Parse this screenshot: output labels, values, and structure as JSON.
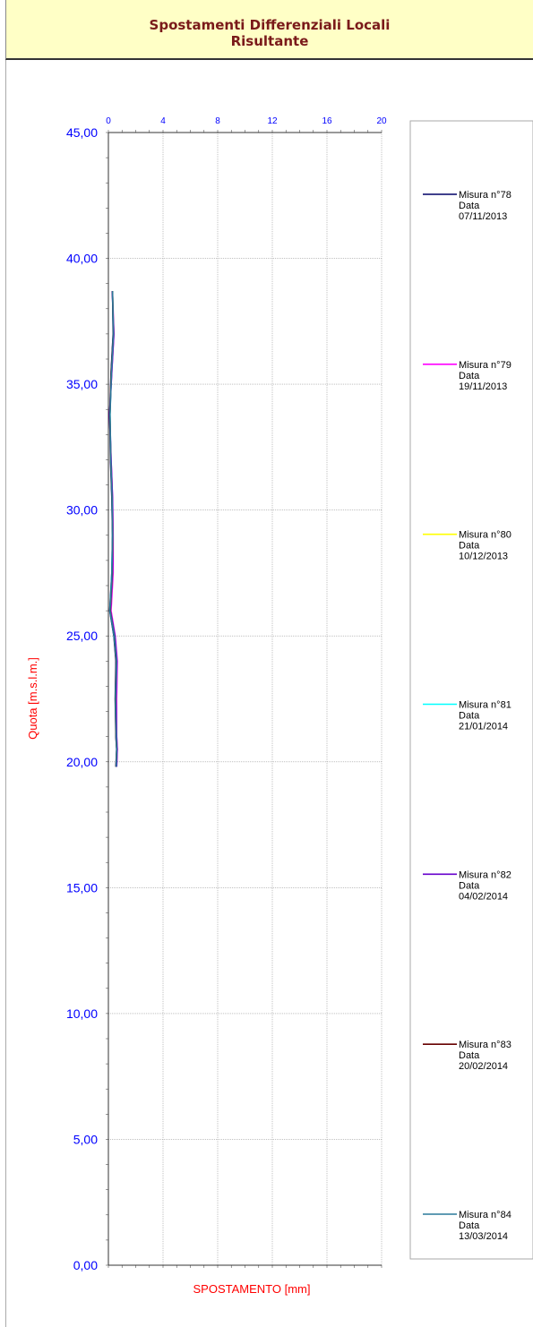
{
  "header": {
    "title_line1": "Spostamenti Differenziali Locali",
    "title_line2": "Risultante"
  },
  "chart_data": {
    "type": "line",
    "title": "Spostamenti Differenziali Locali Risultante",
    "xlabel": "SPOSTAMENTO [mm]",
    "ylabel": "Quota [m.s.l.m.]",
    "xlim": [
      0,
      20
    ],
    "ylim": [
      0,
      45
    ],
    "x_ticks": [
      "0",
      "4",
      "8",
      "12",
      "16",
      "20"
    ],
    "y_ticks": [
      "0,00",
      "5,00",
      "10,00",
      "15,00",
      "20,00",
      "25,00",
      "30,00",
      "35,00",
      "40,00",
      "45,00"
    ],
    "x_axis_position": "top",
    "grid": true,
    "legend_position": "right",
    "series": [
      {
        "name": "Misura n°78",
        "date": "07/11/2013",
        "color": "#000066",
        "points": [
          [
            0.3,
            38.7
          ],
          [
            0.35,
            37.0
          ],
          [
            0.2,
            35.5
          ],
          [
            0.1,
            33.8
          ],
          [
            0.15,
            32.0
          ],
          [
            0.25,
            30.5
          ],
          [
            0.3,
            29.0
          ],
          [
            0.25,
            27.5
          ],
          [
            0.1,
            26.0
          ],
          [
            0.4,
            25.0
          ],
          [
            0.55,
            24.0
          ],
          [
            0.5,
            22.5
          ],
          [
            0.55,
            21.0
          ],
          [
            0.6,
            20.5
          ],
          [
            0.55,
            19.8
          ]
        ]
      },
      {
        "name": "Misura n°79",
        "date": "19/11/2013",
        "color": "#ff00ff",
        "points": [
          [
            0.3,
            38.7
          ],
          [
            0.4,
            37.0
          ],
          [
            0.25,
            35.5
          ],
          [
            0.1,
            33.8
          ],
          [
            0.2,
            32.0
          ],
          [
            0.3,
            30.5
          ],
          [
            0.35,
            29.0
          ],
          [
            0.35,
            27.5
          ],
          [
            0.2,
            26.0
          ],
          [
            0.5,
            25.0
          ],
          [
            0.65,
            24.0
          ],
          [
            0.6,
            22.5
          ],
          [
            0.6,
            21.0
          ],
          [
            0.65,
            20.5
          ],
          [
            0.6,
            19.8
          ]
        ]
      },
      {
        "name": "Misura n°80",
        "date": "10/12/2013",
        "color": "#ffff00",
        "points": [
          [
            0.3,
            38.7
          ],
          [
            0.38,
            37.0
          ],
          [
            0.22,
            35.5
          ],
          [
            0.1,
            33.8
          ],
          [
            0.18,
            32.0
          ],
          [
            0.28,
            30.5
          ],
          [
            0.32,
            29.0
          ],
          [
            0.3,
            27.5
          ],
          [
            0.15,
            26.0
          ],
          [
            0.45,
            25.0
          ],
          [
            0.6,
            24.0
          ],
          [
            0.55,
            22.5
          ],
          [
            0.58,
            21.0
          ],
          [
            0.62,
            20.5
          ],
          [
            0.58,
            19.8
          ]
        ]
      },
      {
        "name": "Misura n°81",
        "date": "21/01/2014",
        "color": "#00ffff",
        "points": [
          [
            0.3,
            38.7
          ],
          [
            0.37,
            37.0
          ],
          [
            0.22,
            35.5
          ],
          [
            0.12,
            33.8
          ],
          [
            0.18,
            32.0
          ],
          [
            0.27,
            30.5
          ],
          [
            0.3,
            29.0
          ],
          [
            0.25,
            27.5
          ],
          [
            0.12,
            26.0
          ],
          [
            0.42,
            25.0
          ],
          [
            0.58,
            24.0
          ],
          [
            0.52,
            22.5
          ],
          [
            0.57,
            21.0
          ],
          [
            0.62,
            20.5
          ],
          [
            0.57,
            19.8
          ]
        ]
      },
      {
        "name": "Misura n°82",
        "date": "04/02/2014",
        "color": "#6600cc",
        "points": [
          [
            0.28,
            38.7
          ],
          [
            0.4,
            37.0
          ],
          [
            0.25,
            35.5
          ],
          [
            0.08,
            33.8
          ],
          [
            0.2,
            32.0
          ],
          [
            0.3,
            30.5
          ],
          [
            0.33,
            29.0
          ],
          [
            0.3,
            27.5
          ],
          [
            0.15,
            26.0
          ],
          [
            0.48,
            25.0
          ],
          [
            0.62,
            24.0
          ],
          [
            0.56,
            22.5
          ],
          [
            0.6,
            21.0
          ],
          [
            0.64,
            20.5
          ],
          [
            0.6,
            19.8
          ]
        ]
      },
      {
        "name": "Misura n°83",
        "date": "20/02/2014",
        "color": "#660000",
        "points": [
          [
            0.3,
            38.7
          ],
          [
            0.36,
            37.0
          ],
          [
            0.21,
            35.5
          ],
          [
            0.11,
            33.8
          ],
          [
            0.17,
            32.0
          ],
          [
            0.26,
            30.5
          ],
          [
            0.31,
            29.0
          ],
          [
            0.27,
            27.5
          ],
          [
            0.13,
            26.0
          ],
          [
            0.43,
            25.0
          ],
          [
            0.57,
            24.0
          ],
          [
            0.52,
            22.5
          ],
          [
            0.56,
            21.0
          ],
          [
            0.61,
            20.5
          ],
          [
            0.56,
            19.8
          ]
        ]
      },
      {
        "name": "Misura n°84",
        "date": "13/03/2014",
        "color": "#2a7a9a",
        "points": [
          [
            0.3,
            38.7
          ],
          [
            0.37,
            37.0
          ],
          [
            0.23,
            35.5
          ],
          [
            0.12,
            33.8
          ],
          [
            0.18,
            32.0
          ],
          [
            0.27,
            30.5
          ],
          [
            0.31,
            29.0
          ],
          [
            0.26,
            27.5
          ],
          [
            0.12,
            26.0
          ],
          [
            0.44,
            25.0
          ],
          [
            0.59,
            24.0
          ],
          [
            0.53,
            22.5
          ],
          [
            0.57,
            21.0
          ],
          [
            0.61,
            20.5
          ],
          [
            0.57,
            19.8
          ]
        ]
      }
    ]
  },
  "legend": {
    "date_label": "Data"
  }
}
